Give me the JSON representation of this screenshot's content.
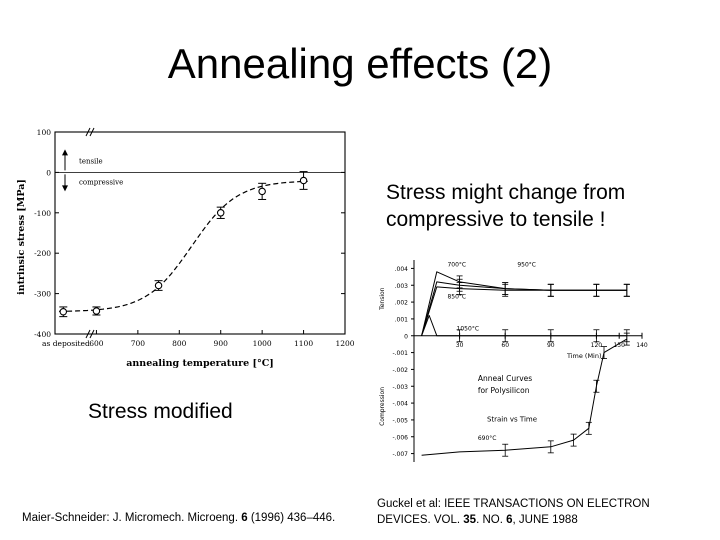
{
  "slide": {
    "title": "Annealing effects (2)",
    "callout_upper_line1": "Stress might change from",
    "callout_upper_line2": "compressive to tensile !",
    "callout_lower": "Stress modified"
  },
  "citations": {
    "left": {
      "text_before": "Maier-Schneider: J. Micromech. Microeng. ",
      "bold": "6",
      "text_after": " (1996) 436–446."
    },
    "right": {
      "line1": "Guckel et al: IEEE TRANSACTIONS ON ELECTRON",
      "line2_before": "DEVICES. VOL. ",
      "line2_bold1": "35",
      "line2_mid": ". NO. ",
      "line2_bold2": "6",
      "line2_after": ", JUNE 1988"
    }
  },
  "chart_data": [
    {
      "type": "scatter",
      "title": "",
      "xlabel": "annealing temperature [°C]",
      "ylabel": "intrinsic stress [MPa]",
      "x_first_category": "as deposited",
      "x_ticks": [
        "600",
        "700",
        "800",
        "900",
        "1000",
        "1100",
        "1200"
      ],
      "y_ticks": [
        "100",
        "0",
        "-100",
        "-200",
        "-300",
        "-400"
      ],
      "xlim": [
        500,
        1200
      ],
      "ylim": [
        -400,
        100
      ],
      "axis_break_marks": true,
      "annotations": {
        "tensile": "tensile",
        "compressive": "compressive"
      },
      "series": [
        {
          "x": [
            "as deposited",
            600,
            750,
            900,
            1000,
            1100
          ],
          "y": [
            -345,
            -343,
            -280,
            -100,
            -47,
            -20
          ],
          "error": [
            12,
            10,
            12,
            14,
            20,
            22
          ],
          "style": "open circles with error bars and dashed sigmoid fit"
        }
      ],
      "grid": false
    },
    {
      "type": "line",
      "title": "Anneal Curves for Polysilicon",
      "subtitle": "Strain vs Time",
      "xlabel": "Time (Min)",
      "ylabel_positive": "Tension",
      "ylabel_negative": "Compression",
      "x_ticks": [
        "30",
        "60",
        "90",
        "120",
        "150",
        "140"
      ],
      "y_ticks": [
        ".004",
        ".003",
        ".002",
        ".001",
        "0",
        "-.001",
        "-.002",
        "-.003",
        "-.004",
        "-.005",
        "-.006",
        "-.007"
      ],
      "xlim": [
        0,
        150
      ],
      "ylim": [
        -0.0075,
        0.0045
      ],
      "series": [
        {
          "name": "700°C",
          "x": [
            5,
            15,
            30,
            60,
            90,
            120,
            140
          ],
          "y": [
            0.0,
            0.0038,
            0.0032,
            0.0028,
            0.0027,
            0.0027,
            0.0027
          ]
        },
        {
          "name": "850°C",
          "x": [
            5,
            15,
            30,
            60,
            90,
            120,
            140
          ],
          "y": [
            0.0,
            0.0029,
            0.0028,
            0.0027,
            0.0027,
            0.0027,
            0.0027
          ]
        },
        {
          "name": "950°C",
          "x": [
            5,
            15,
            30,
            60,
            90,
            120,
            140
          ],
          "y": [
            0.0,
            0.0032,
            0.003,
            0.0028,
            0.0027,
            0.0027,
            0.0027
          ]
        },
        {
          "name": "1050°C",
          "x": [
            5,
            10,
            15,
            30,
            60,
            90,
            120,
            140
          ],
          "y": [
            0.0,
            0.0012,
            0.0,
            0.0,
            0.0,
            0.0,
            0.0,
            0.0
          ]
        },
        {
          "name": "690°C",
          "x": [
            5,
            30,
            60,
            90,
            105,
            115,
            120,
            125,
            140
          ],
          "y": [
            -0.0071,
            -0.0069,
            -0.0068,
            -0.0066,
            -0.0062,
            -0.0055,
            -0.003,
            -0.001,
            -0.0002
          ]
        }
      ],
      "grid": false
    }
  ]
}
